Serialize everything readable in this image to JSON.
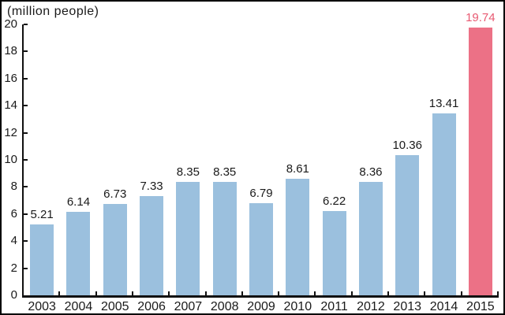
{
  "header": {
    "unit_label": "(million people)"
  },
  "chart_data": {
    "type": "bar",
    "title": "",
    "xlabel": "",
    "ylabel": "(million people)",
    "categories": [
      "2003",
      "2004",
      "2005",
      "2006",
      "2007",
      "2008",
      "2009",
      "2010",
      "2011",
      "2012",
      "2013",
      "2014",
      "2015"
    ],
    "values": [
      5.21,
      6.14,
      6.73,
      7.33,
      8.35,
      8.35,
      6.79,
      8.61,
      6.22,
      8.36,
      10.36,
      13.41,
      19.74
    ],
    "value_labels": [
      "5.21",
      "6.14",
      "6.73",
      "7.33",
      "8.35",
      "8.35",
      "6.79",
      "8.61",
      "6.22",
      "8.36",
      "10.36",
      "13.41",
      "19.74"
    ],
    "ylim": [
      0,
      20
    ],
    "yticks": [
      0,
      2,
      4,
      6,
      8,
      10,
      12,
      14,
      16,
      18,
      20
    ],
    "grid": false,
    "legend": "none",
    "bar_color": "#9bc0de",
    "highlight_index": 12,
    "highlight_color": "#ec7186",
    "value_label_color": "#1a1a1a",
    "highlight_value_label_color": "#e85a72",
    "axis_color": "#111111"
  }
}
